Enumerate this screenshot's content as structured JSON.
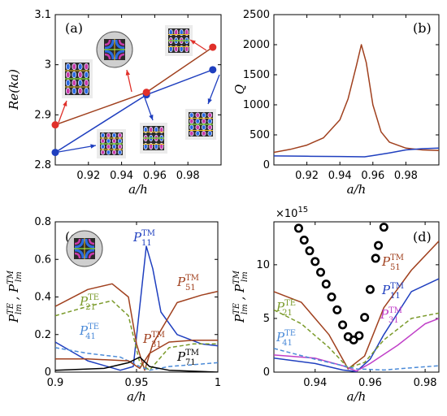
{
  "colors": {
    "blue": "#1f3fbf",
    "brown": "#a0401e",
    "red": "#e0302a",
    "green": "#7a9a2a",
    "lightblue": "#4a8ad8",
    "magenta": "#c040c8",
    "olive": "#9a7a20",
    "black": "#000000"
  },
  "chart_data": [
    {
      "panel": "(a)",
      "type": "line",
      "xlabel": "a/h",
      "ylabel": "Re(ka)",
      "xlim": [
        0.9,
        1.0
      ],
      "ylim": [
        2.8,
        3.1
      ],
      "xticks": [
        "0.92",
        "0.94",
        "0.96",
        "0.98"
      ],
      "yticks": [
        "2.8",
        "2.9",
        "3",
        "3.1"
      ],
      "series": [
        {
          "color": "blue",
          "x": [
            0.9,
            0.955,
            0.995
          ],
          "y": [
            2.825,
            2.94,
            2.99
          ]
        },
        {
          "color": "brown",
          "x": [
            0.9,
            0.955,
            0.995
          ],
          "y": [
            2.88,
            2.945,
            3.035
          ]
        }
      ]
    },
    {
      "panel": "(b)",
      "type": "line",
      "xlabel": "a/h",
      "ylabel": "Q",
      "xlim": [
        0.9,
        1.0
      ],
      "ylim": [
        0,
        2500
      ],
      "xticks": [
        "0.92",
        "0.94",
        "0.96",
        "0.98"
      ],
      "yticks": [
        "0",
        "500",
        "1000",
        "1500",
        "2000",
        "2500"
      ],
      "series": [
        {
          "color": "brown",
          "x": [
            0.9,
            0.91,
            0.92,
            0.93,
            0.94,
            0.945,
            0.95,
            0.953,
            0.956,
            0.96,
            0.965,
            0.97,
            0.98,
            0.99,
            1.0
          ],
          "y": [
            210,
            260,
            330,
            450,
            750,
            1100,
            1650,
            2000,
            1700,
            1000,
            550,
            380,
            280,
            250,
            240
          ]
        },
        {
          "color": "blue",
          "x": [
            0.9,
            0.92,
            0.94,
            0.955,
            0.96,
            0.97,
            0.98,
            0.99,
            1.0
          ],
          "y": [
            150,
            145,
            140,
            135,
            155,
            200,
            250,
            270,
            280
          ]
        }
      ]
    },
    {
      "panel": "(c)",
      "type": "line",
      "xlabel": "a/h",
      "ylabel": "P^TE_lm , P^TM_lm",
      "xlim": [
        0.9,
        1.0
      ],
      "ylim": [
        0,
        0.8
      ],
      "xticks": [
        "0.9",
        "0.95",
        "1"
      ],
      "yticks": [
        "0",
        "0.2",
        "0.4",
        "0.6",
        "0.8"
      ],
      "series": [
        {
          "color": "blue",
          "x": [
            0.9,
            0.92,
            0.94,
            0.948,
            0.952,
            0.956,
            0.96,
            0.965,
            0.975,
            0.99,
            1.0
          ],
          "y": [
            0.16,
            0.06,
            0.01,
            0.03,
            0.35,
            0.67,
            0.55,
            0.32,
            0.2,
            0.15,
            0.14
          ]
        },
        {
          "color": "brown",
          "x": [
            0.9,
            0.92,
            0.935,
            0.945,
            0.95,
            0.955,
            0.96,
            0.975,
            0.99,
            1.0
          ],
          "y": [
            0.35,
            0.44,
            0.47,
            0.4,
            0.15,
            0.01,
            0.15,
            0.37,
            0.41,
            0.43
          ]
        },
        {
          "color": "green",
          "dashed": true,
          "x": [
            0.9,
            0.92,
            0.935,
            0.945,
            0.952,
            0.958,
            0.97,
            0.985,
            1.0
          ],
          "y": [
            0.3,
            0.35,
            0.38,
            0.3,
            0.05,
            0.01,
            0.13,
            0.15,
            0.15
          ]
        },
        {
          "color": "lightblue",
          "dashed": true,
          "x": [
            0.9,
            0.92,
            0.94,
            0.952,
            0.958,
            0.97,
            0.985,
            1.0
          ],
          "y": [
            0.13,
            0.1,
            0.08,
            0.03,
            0.01,
            0.03,
            0.04,
            0.05
          ]
        },
        {
          "color": "brown",
          "x": [
            0.9,
            0.92,
            0.945,
            0.952,
            0.958,
            0.97,
            0.985,
            1.0
          ],
          "y": [
            0.07,
            0.07,
            0.06,
            0.02,
            0.1,
            0.16,
            0.17,
            0.17
          ]
        },
        {
          "color": "black",
          "x": [
            0.9,
            0.93,
            0.945,
            0.952,
            0.958,
            0.97,
            1.0
          ],
          "y": [
            0.01,
            0.02,
            0.05,
            0.08,
            0.03,
            0.01,
            0.0
          ]
        }
      ]
    },
    {
      "panel": "(d)",
      "type": "line",
      "xlabel": "a/h",
      "ylabel": "P^TE_lm , P^TM_lm",
      "xlim": [
        0.925,
        0.985
      ],
      "ylim": [
        0,
        14
      ],
      "y_exponent": "×10^15",
      "xticks": [
        "0.94",
        "0.96",
        "0.98"
      ],
      "yticks": [
        "0",
        "5",
        "10"
      ],
      "series": [
        {
          "color": "brown",
          "x": [
            0.925,
            0.935,
            0.945,
            0.952,
            0.958,
            0.965,
            0.975,
            0.985
          ],
          "y": [
            7.5,
            6.5,
            3.5,
            0.3,
            1.5,
            6,
            9.5,
            12.2
          ]
        },
        {
          "color": "blue",
          "x": [
            0.925,
            0.94,
            0.95,
            0.955,
            0.96,
            0.965,
            0.975,
            0.985
          ],
          "y": [
            1.3,
            0.8,
            0.2,
            0.05,
            1.2,
            3.5,
            7.5,
            8.7
          ]
        },
        {
          "color": "magenta",
          "x": [
            0.925,
            0.94,
            0.95,
            0.955,
            0.96,
            0.97,
            0.98,
            0.985
          ],
          "y": [
            1.6,
            1.3,
            0.6,
            0.1,
            0.8,
            2.5,
            4.5,
            5.0
          ]
        },
        {
          "color": "green",
          "dashed": true,
          "x": [
            0.925,
            0.935,
            0.945,
            0.952,
            0.958,
            0.965,
            0.975,
            0.985
          ],
          "y": [
            5.8,
            4.5,
            2.3,
            0.4,
            0.9,
            3,
            5,
            5.5
          ]
        },
        {
          "color": "lightblue",
          "dashed": true,
          "x": [
            0.925,
            0.94,
            0.955,
            0.965,
            0.975,
            0.985
          ],
          "y": [
            2.2,
            1.2,
            0.3,
            0.2,
            0.4,
            0.6
          ]
        },
        {
          "color": "black",
          "markers": "circle",
          "x": [
            0.934,
            0.936,
            0.938,
            0.94,
            0.942,
            0.944,
            0.946,
            0.948,
            0.95,
            0.952,
            0.954,
            0.956,
            0.958,
            0.96,
            0.962,
            0.963,
            0.965
          ],
          "y": [
            13.4,
            12.3,
            11.3,
            10.3,
            9.3,
            8.2,
            7.0,
            5.8,
            4.4,
            3.3,
            3.0,
            3.4,
            5.1,
            7.7,
            10.6,
            11.8,
            13.5
          ]
        }
      ]
    }
  ],
  "panel_labels": [
    "(a)",
    "(b)",
    "(c)",
    "(d)"
  ],
  "annotations": {
    "c": [
      {
        "base": "P",
        "sup": "TM",
        "sub": "11",
        "color": "blue"
      },
      {
        "base": "P",
        "sup": "TM",
        "sub": "51",
        "color": "brown"
      },
      {
        "base": "P",
        "sup": "TE",
        "sub": "21",
        "color": "green"
      },
      {
        "base": "P",
        "sup": "TE",
        "sub": "41",
        "color": "lightblue"
      },
      {
        "base": "P",
        "sup": "TM",
        "sub": "31",
        "color": "brown"
      },
      {
        "base": "P",
        "sup": "TM",
        "sub": "71",
        "color": "black"
      }
    ],
    "d": [
      {
        "base": "P",
        "sup": "TM",
        "sub": "51",
        "color": "brown"
      },
      {
        "base": "P",
        "sup": "TM",
        "sub": "11",
        "color": "blue"
      },
      {
        "base": "P",
        "sup": "TM",
        "sub": "31",
        "color": "magenta"
      },
      {
        "base": "P",
        "sup": "TE",
        "sub": "21",
        "color": "green"
      },
      {
        "base": "P",
        "sup": "TE",
        "sub": "41",
        "color": "lightblue"
      }
    ]
  }
}
